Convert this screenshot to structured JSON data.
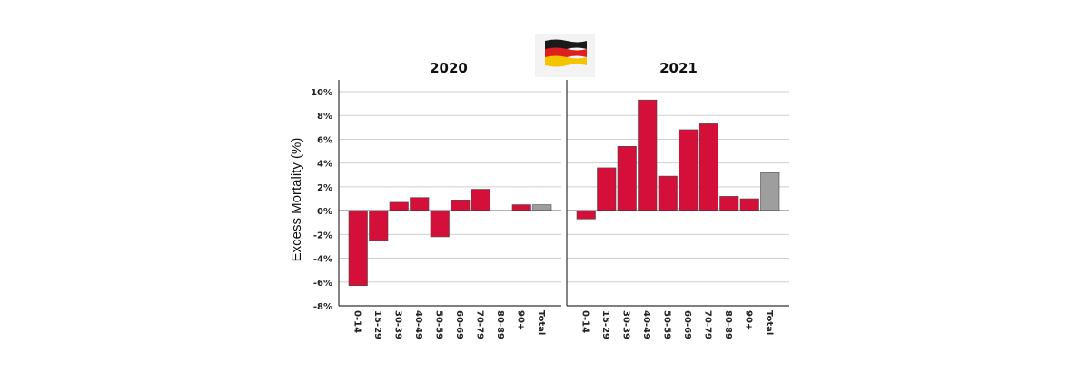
{
  "chart_data": {
    "type": "bar",
    "ylabel": "Excess Mortality (%)",
    "ylim": [
      -8,
      10
    ],
    "yticks": [
      10,
      8,
      6,
      4,
      2,
      0,
      -2,
      -4,
      -6,
      -8
    ],
    "ytick_labels": [
      "10%",
      "8%",
      "6%",
      "4%",
      "2%",
      "0%",
      "-2%",
      "-4%",
      "-6%",
      "-8%"
    ],
    "grid": "horizontal",
    "categories": [
      "0-14",
      "15-29",
      "30-39",
      "40-49",
      "50-59",
      "60-69",
      "70-79",
      "80-89",
      "90+",
      "Total"
    ],
    "colors": {
      "age_group": "#d4103a",
      "total": "#9e9e9e"
    },
    "flag_icon": "germany-flag-icon",
    "panels": [
      {
        "title": "2020",
        "values": [
          -6.3,
          -2.5,
          0.7,
          1.1,
          -2.2,
          0.9,
          1.8,
          0.0,
          0.5,
          0.5
        ]
      },
      {
        "title": "2021",
        "values": [
          -0.7,
          3.6,
          5.4,
          9.3,
          2.9,
          6.8,
          7.3,
          1.2,
          1.0,
          3.2
        ]
      }
    ]
  }
}
